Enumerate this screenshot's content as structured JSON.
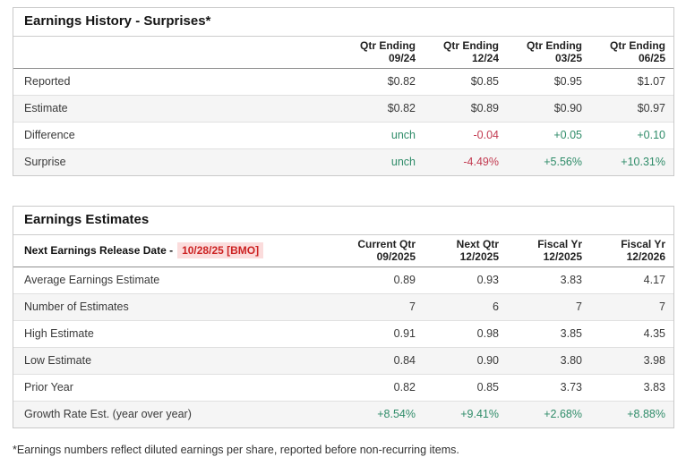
{
  "colors": {
    "positive": "#2f8c69",
    "negative": "#c23a50",
    "release_date_text": "#cc2222",
    "release_date_bg": "#fbdcdc"
  },
  "earnings_history": {
    "title": "Earnings History - Surprises*",
    "columns": [
      "Qtr Ending\n09/24",
      "Qtr Ending\n12/24",
      "Qtr Ending\n03/25",
      "Qtr Ending\n06/25"
    ],
    "rows": [
      {
        "label": "Reported",
        "values": [
          "$0.82",
          "$0.85",
          "$0.95",
          "$1.07"
        ]
      },
      {
        "label": "Estimate",
        "values": [
          "$0.82",
          "$0.89",
          "$0.90",
          "$0.97"
        ]
      },
      {
        "label": "Difference",
        "values": [
          "unch",
          "-0.04",
          "+0.05",
          "+0.10"
        ],
        "tones": [
          "pos",
          "neg",
          "pos",
          "pos"
        ]
      },
      {
        "label": "Surprise",
        "values": [
          "unch",
          "-4.49%",
          "+5.56%",
          "+10.31%"
        ],
        "tones": [
          "pos",
          "neg",
          "pos",
          "pos"
        ]
      }
    ]
  },
  "earnings_estimates": {
    "title": "Earnings Estimates",
    "release_label": "Next Earnings Release Date -",
    "release_date": "10/28/25 [BMO]",
    "columns": [
      "Current Qtr\n09/2025",
      "Next Qtr\n12/2025",
      "Fiscal Yr\n12/2025",
      "Fiscal Yr\n12/2026"
    ],
    "rows": [
      {
        "label": "Average Earnings Estimate",
        "values": [
          "0.89",
          "0.93",
          "3.83",
          "4.17"
        ]
      },
      {
        "label": "Number of Estimates",
        "values": [
          "7",
          "6",
          "7",
          "7"
        ]
      },
      {
        "label": "High Estimate",
        "values": [
          "0.91",
          "0.98",
          "3.85",
          "4.35"
        ]
      },
      {
        "label": "Low Estimate",
        "values": [
          "0.84",
          "0.90",
          "3.80",
          "3.98"
        ]
      },
      {
        "label": "Prior Year",
        "values": [
          "0.82",
          "0.85",
          "3.73",
          "3.83"
        ]
      },
      {
        "label": "Growth Rate Est. (year over year)",
        "values": [
          "+8.54%",
          "+9.41%",
          "+2.68%",
          "+8.88%"
        ],
        "tones": [
          "pos",
          "pos",
          "pos",
          "pos"
        ]
      }
    ]
  },
  "footnote": "*Earnings numbers reflect diluted earnings per share, reported before non-recurring items."
}
